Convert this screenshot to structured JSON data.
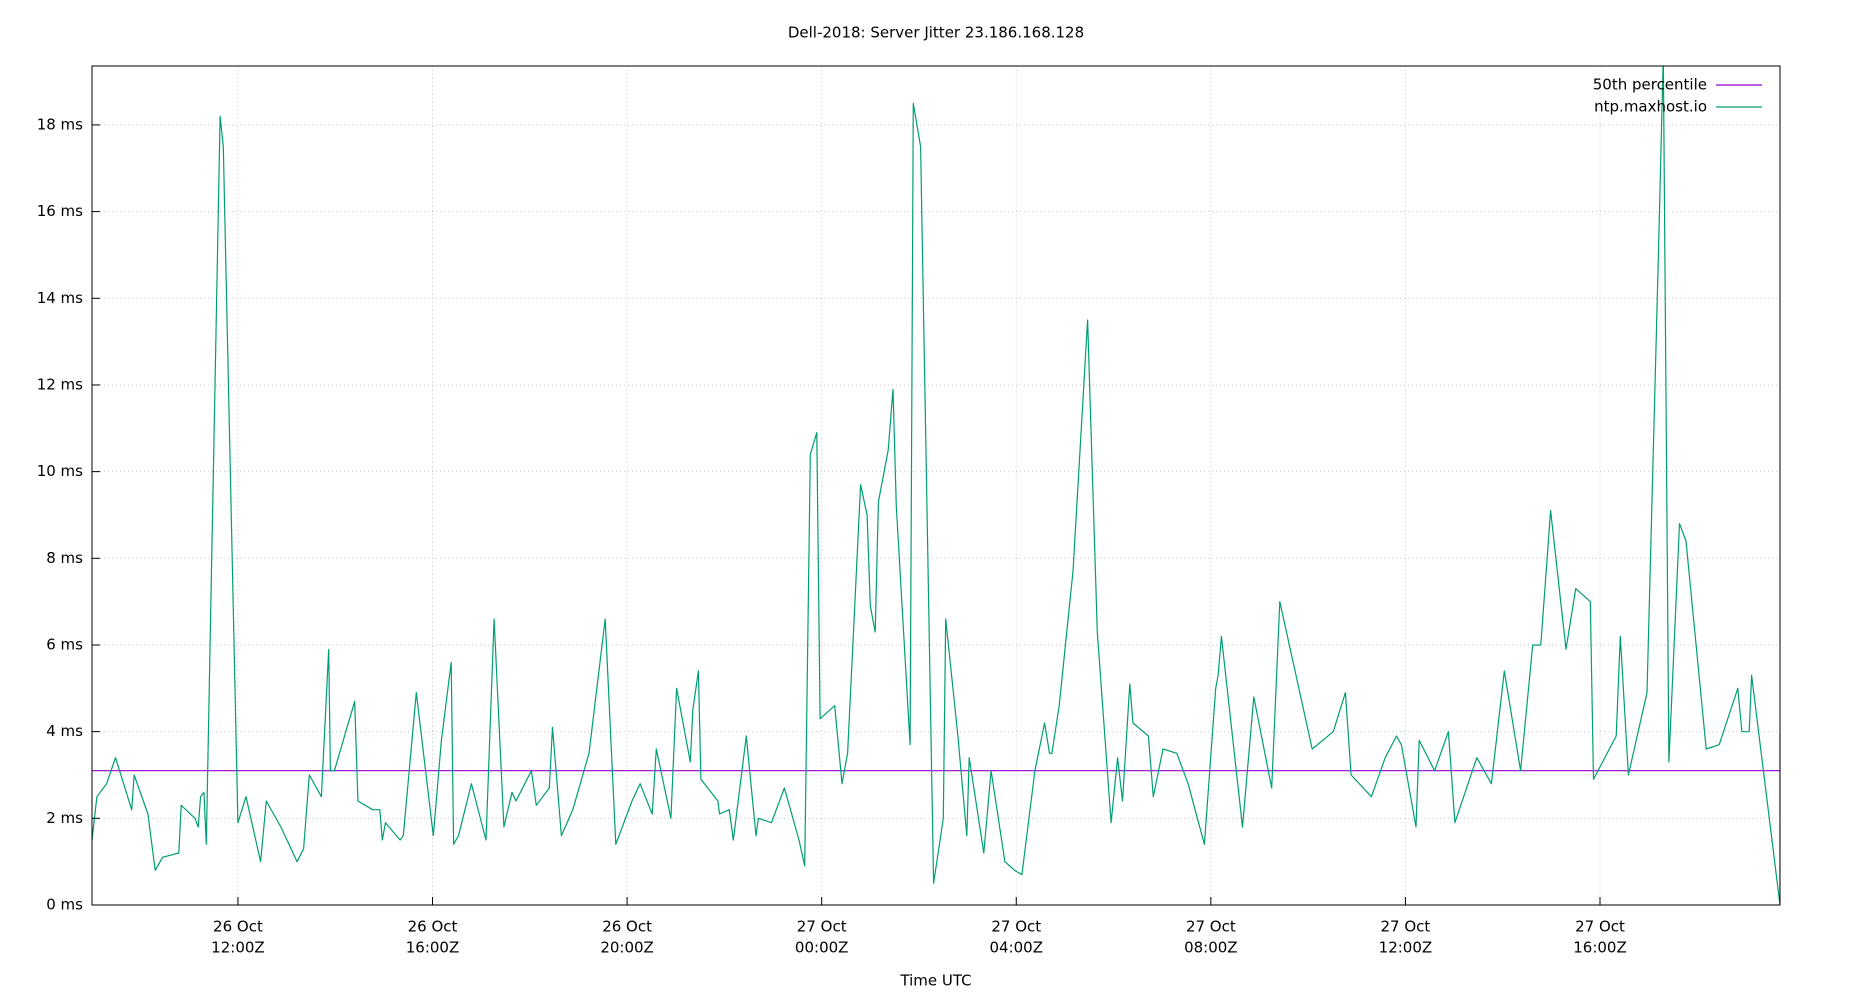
{
  "chart_data": {
    "type": "line",
    "title": "Dell-2018: Server Jitter 23.186.168.128",
    "x_label": "Time UTC",
    "xlim": [
      "26 Oct 09:00",
      "27 Oct 19:42"
    ],
    "ylim": [
      0,
      19.36
    ],
    "yticks": [
      {
        "value": 0,
        "label": "0 ms"
      },
      {
        "value": 2,
        "label": "2 ms"
      },
      {
        "value": 4,
        "label": "4 ms"
      },
      {
        "value": 6,
        "label": "6 ms"
      },
      {
        "value": 8,
        "label": "8 ms"
      },
      {
        "value": 10,
        "label": "10 ms"
      },
      {
        "value": 12,
        "label": "12 ms"
      },
      {
        "value": 14,
        "label": "14 ms"
      },
      {
        "value": 16,
        "label": "16 ms"
      },
      {
        "value": 18,
        "label": "18 ms"
      }
    ],
    "xticks": [
      {
        "value": "26 Oct 12:00",
        "label": [
          "26 Oct",
          "12:00Z"
        ]
      },
      {
        "value": "26 Oct 16:00",
        "label": [
          "26 Oct",
          "16:00Z"
        ]
      },
      {
        "value": "26 Oct 20:00",
        "label": [
          "26 Oct",
          "20:00Z"
        ]
      },
      {
        "value": "27 Oct 00:00",
        "label": [
          "27 Oct",
          "00:00Z"
        ]
      },
      {
        "value": "27 Oct 04:00",
        "label": [
          "27 Oct",
          "04:00Z"
        ]
      },
      {
        "value": "27 Oct 08:00",
        "label": [
          "27 Oct",
          "08:00Z"
        ]
      },
      {
        "value": "27 Oct 12:00",
        "label": [
          "27 Oct",
          "12:00Z"
        ]
      },
      {
        "value": "27 Oct 16:00",
        "label": [
          "27 Oct",
          "16:00Z"
        ]
      }
    ],
    "grid": true,
    "legend_position": "top-right",
    "series": [
      {
        "name": "50th percentile",
        "color": "#9400d3",
        "x": [
          "26 Oct 09:00",
          "27 Oct 19:42"
        ],
        "values": [
          3.1,
          3.1
        ]
      },
      {
        "name": "ntp.maxhost.io",
        "color": "#009e73",
        "x": [
          "26 Oct 09:00",
          "26 Oct 09:06",
          "26 Oct 09:18",
          "26 Oct 09:29",
          "26 Oct 09:49",
          "26 Oct 09:52",
          "26 Oct 10:09",
          "26 Oct 10:18",
          "26 Oct 10:27",
          "26 Oct 10:47",
          "26 Oct 10:50",
          "26 Oct 11:07",
          "26 Oct 11:11",
          "26 Oct 11:14",
          "26 Oct 11:18",
          "26 Oct 11:21",
          "26 Oct 11:38",
          "26 Oct 11:42",
          "26 Oct 12:00",
          "26 Oct 12:10",
          "26 Oct 12:28",
          "26 Oct 12:35",
          "26 Oct 12:53",
          "26 Oct 13:13",
          "26 Oct 13:21",
          "26 Oct 13:28",
          "26 Oct 13:43",
          "26 Oct 13:52",
          "26 Oct 13:54",
          "26 Oct 13:59",
          "26 Oct 14:24",
          "26 Oct 14:28",
          "26 Oct 14:46",
          "26 Oct 14:55",
          "26 Oct 14:58",
          "26 Oct 15:02",
          "26 Oct 15:20",
          "26 Oct 15:24",
          "26 Oct 15:40",
          "26 Oct 16:01",
          "26 Oct 16:11",
          "26 Oct 16:23",
          "26 Oct 16:26",
          "26 Oct 16:32",
          "26 Oct 16:48",
          "26 Oct 17:06",
          "26 Oct 17:16",
          "26 Oct 17:28",
          "26 Oct 17:38",
          "26 Oct 17:43",
          "26 Oct 18:02",
          "26 Oct 18:08",
          "26 Oct 18:24",
          "26 Oct 18:28",
          "26 Oct 18:39",
          "26 Oct 18:53",
          "26 Oct 19:13",
          "26 Oct 19:33",
          "26 Oct 19:46",
          "26 Oct 20:06",
          "26 Oct 20:16",
          "26 Oct 20:31",
          "26 Oct 20:36",
          "26 Oct 20:54",
          "26 Oct 21:01",
          "26 Oct 21:18",
          "26 Oct 21:21",
          "26 Oct 21:28",
          "26 Oct 21:31",
          "26 Oct 21:52",
          "26 Oct 21:54",
          "26 Oct 22:06",
          "26 Oct 22:11",
          "26 Oct 22:27",
          "26 Oct 22:39",
          "26 Oct 22:42",
          "26 Oct 22:58",
          "26 Oct 23:14",
          "26 Oct 23:32",
          "26 Oct 23:39",
          "26 Oct 23:46",
          "26 Oct 23:54",
          "26 Oct 23:58",
          "27 Oct 00:16",
          "27 Oct 00:25",
          "27 Oct 00:32",
          "27 Oct 00:48",
          "27 Oct 00:56",
          "27 Oct 01:00",
          "27 Oct 01:06",
          "27 Oct 01:10",
          "27 Oct 01:22",
          "27 Oct 01:28",
          "27 Oct 01:32",
          "27 Oct 01:49",
          "27 Oct 01:53",
          "27 Oct 02:02",
          "27 Oct 02:18",
          "27 Oct 02:30",
          "27 Oct 02:33",
          "27 Oct 02:48",
          "27 Oct 02:59",
          "27 Oct 03:02",
          "27 Oct 03:20",
          "27 Oct 03:29",
          "27 Oct 03:46",
          "27 Oct 03:58",
          "27 Oct 04:07",
          "27 Oct 04:23",
          "27 Oct 04:35",
          "27 Oct 04:41",
          "27 Oct 04:44",
          "27 Oct 04:53",
          "27 Oct 05:10",
          "27 Oct 05:28",
          "27 Oct 05:40",
          "27 Oct 05:57",
          "27 Oct 06:05",
          "27 Oct 06:11",
          "27 Oct 06:20",
          "27 Oct 06:24",
          "27 Oct 06:43",
          "27 Oct 06:49",
          "27 Oct 07:01",
          "27 Oct 07:18",
          "27 Oct 07:32",
          "27 Oct 07:52",
          "27 Oct 08:06",
          "27 Oct 08:09",
          "27 Oct 08:13",
          "27 Oct 08:39",
          "27 Oct 08:53",
          "27 Oct 09:15",
          "27 Oct 09:25",
          "27 Oct 10:05",
          "27 Oct 10:31",
          "27 Oct 10:46",
          "27 Oct 10:53",
          "27 Oct 11:18",
          "27 Oct 11:35",
          "27 Oct 11:49",
          "27 Oct 11:55",
          "27 Oct 12:13",
          "27 Oct 12:17",
          "27 Oct 12:36",
          "27 Oct 12:53",
          "27 Oct 13:01",
          "27 Oct 13:28",
          "27 Oct 13:46",
          "27 Oct 14:02",
          "27 Oct 14:22",
          "27 Oct 14:37",
          "27 Oct 14:47",
          "27 Oct 14:59",
          "27 Oct 15:18",
          "27 Oct 15:30",
          "27 Oct 15:48",
          "27 Oct 15:52",
          "27 Oct 16:20",
          "27 Oct 16:25",
          "27 Oct 16:35",
          "27 Oct 16:58",
          "27 Oct 17:12",
          "27 Oct 17:18",
          "27 Oct 17:25",
          "27 Oct 17:38",
          "27 Oct 17:46",
          "27 Oct 18:11",
          "27 Oct 18:27",
          "27 Oct 18:50",
          "27 Oct 18:55",
          "27 Oct 19:04",
          "27 Oct 19:07",
          "27 Oct 19:42",
          "27 Oct 19:42"
        ],
        "values": [
          1.5,
          2.5,
          2.8,
          3.4,
          2.2,
          3.0,
          2.1,
          0.8,
          1.1,
          1.2,
          2.3,
          2.0,
          1.8,
          2.5,
          2.6,
          1.4,
          18.2,
          17.5,
          1.9,
          2.5,
          1.0,
          2.4,
          1.8,
          1.0,
          1.3,
          3.0,
          2.5,
          5.9,
          3.1,
          3.1,
          4.7,
          2.4,
          2.2,
          2.2,
          1.5,
          1.9,
          1.5,
          1.6,
          4.9,
          1.6,
          3.8,
          5.6,
          1.4,
          1.6,
          2.8,
          1.5,
          6.6,
          1.8,
          2.6,
          2.4,
          3.1,
          2.3,
          2.7,
          4.1,
          1.6,
          2.2,
          3.5,
          6.6,
          1.4,
          2.4,
          2.8,
          2.1,
          3.6,
          2.0,
          5.0,
          3.3,
          4.5,
          5.4,
          2.9,
          2.4,
          2.1,
          2.2,
          1.5,
          3.9,
          1.6,
          2.0,
          1.9,
          2.7,
          1.5,
          0.9,
          10.4,
          10.9,
          4.3,
          4.6,
          2.8,
          3.5,
          9.7,
          9.0,
          6.9,
          6.3,
          9.3,
          10.5,
          11.9,
          9.2,
          3.7,
          18.5,
          17.5,
          0.5,
          2.0,
          6.6,
          3.9,
          1.6,
          3.4,
          1.2,
          3.1,
          1.0,
          0.8,
          0.7,
          3.1,
          4.2,
          3.5,
          3.5,
          4.6,
          7.7,
          13.5,
          6.3,
          1.9,
          3.4,
          2.4,
          5.1,
          4.2,
          3.9,
          2.5,
          3.6,
          3.5,
          2.8,
          1.4,
          5.0,
          5.3,
          6.2,
          1.8,
          4.8,
          2.7,
          7.0,
          3.6,
          4.0,
          4.9,
          3.0,
          2.5,
          3.4,
          3.9,
          3.7,
          1.8,
          3.8,
          3.1,
          4.0,
          1.9,
          3.4,
          2.8,
          5.4,
          3.1,
          6.0,
          6.0,
          9.1,
          5.9,
          7.3,
          7.0,
          2.9,
          3.9,
          6.2,
          3.0,
          4.9,
          15.0,
          19.6,
          3.3,
          8.8,
          8.4,
          3.6,
          3.7,
          5.0,
          4.0,
          4.0,
          5.3,
          0.0,
          4.0
        ]
      }
    ]
  }
}
